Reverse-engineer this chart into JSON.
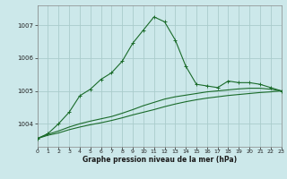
{
  "title": "Graphe pression niveau de la mer (hPa)",
  "background_color": "#cce8ea",
  "grid_color": "#aacccc",
  "line_color": "#1a6b2a",
  "xlim": [
    0,
    23
  ],
  "ylim": [
    1003.3,
    1007.6
  ],
  "yticks": [
    1004,
    1005,
    1006,
    1007
  ],
  "xticks": [
    0,
    1,
    2,
    3,
    4,
    5,
    6,
    7,
    8,
    9,
    10,
    11,
    12,
    13,
    14,
    15,
    16,
    17,
    18,
    19,
    20,
    21,
    22,
    23
  ],
  "series1": {
    "x": [
      0,
      1,
      2,
      3,
      4,
      5,
      6,
      7,
      8,
      9,
      10,
      11,
      12,
      13,
      14,
      15,
      16,
      17,
      18,
      19,
      20,
      21,
      22,
      23
    ],
    "y": [
      1003.55,
      1003.7,
      1004.0,
      1004.35,
      1004.85,
      1005.05,
      1005.35,
      1005.55,
      1005.9,
      1006.45,
      1006.85,
      1007.25,
      1007.1,
      1006.55,
      1005.75,
      1005.2,
      1005.15,
      1005.1,
      1005.3,
      1005.25,
      1005.25,
      1005.2,
      1005.1,
      1005.0
    ]
  },
  "series2": {
    "x": [
      0,
      1,
      2,
      3,
      4,
      5,
      6,
      7,
      8,
      9,
      10,
      11,
      12,
      13,
      14,
      15,
      16,
      17,
      18,
      19,
      20,
      21,
      22,
      23
    ],
    "y": [
      1003.55,
      1003.65,
      1003.72,
      1003.82,
      1003.9,
      1003.97,
      1004.03,
      1004.1,
      1004.18,
      1004.27,
      1004.35,
      1004.43,
      1004.52,
      1004.6,
      1004.67,
      1004.73,
      1004.78,
      1004.82,
      1004.86,
      1004.89,
      1004.92,
      1004.95,
      1004.97,
      1005.0
    ]
  },
  "series3": {
    "x": [
      0,
      1,
      2,
      3,
      4,
      5,
      6,
      7,
      8,
      9,
      10,
      11,
      12,
      13,
      14,
      15,
      16,
      17,
      18,
      19,
      20,
      21,
      22,
      23
    ],
    "y": [
      1003.55,
      1003.68,
      1003.78,
      1003.9,
      1004.0,
      1004.08,
      1004.15,
      1004.22,
      1004.32,
      1004.43,
      1004.55,
      1004.65,
      1004.75,
      1004.82,
      1004.87,
      1004.92,
      1004.97,
      1005.0,
      1005.03,
      1005.06,
      1005.08,
      1005.08,
      1005.05,
      1005.0
    ]
  }
}
